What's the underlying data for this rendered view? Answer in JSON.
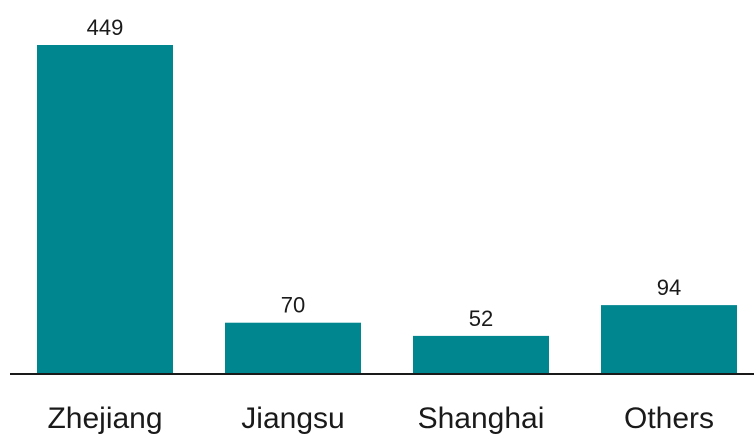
{
  "chart_data": {
    "type": "bar",
    "categories": [
      "Zhejiang",
      "Jiangsu",
      "Shanghai",
      "Others"
    ],
    "values": [
      449,
      70,
      52,
      94
    ],
    "data_labels": [
      "449",
      "70",
      "52",
      "94"
    ],
    "title": "",
    "xlabel": "",
    "ylabel": "",
    "ylim": [
      0,
      449
    ],
    "grid": false,
    "legend": "none",
    "bar_color": "#00868f",
    "axis_color": "#1a1a1a"
  }
}
